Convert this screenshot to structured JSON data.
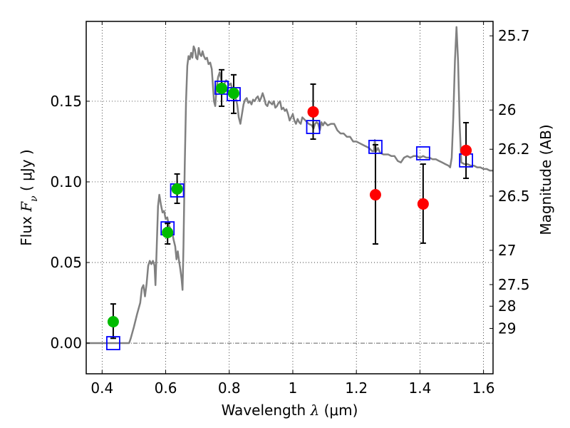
{
  "chart_data": {
    "type": "scatter",
    "title": "",
    "xlabel": "Wavelength  λ (μm)",
    "xlabel_parts": {
      "prefix": "Wavelength  ",
      "symbol": "λ",
      "unit": " (μm)"
    },
    "ylabel": "Flux  Fν  ( μJy )",
    "ylabel_parts": {
      "prefix": "Flux  ",
      "symbol": "F",
      "subscript": "ν",
      "unit": "  ( μJy )"
    },
    "y2label": "Magnitude (AB)",
    "xlim": [
      0.35,
      1.63
    ],
    "ylim": [
      -0.019,
      0.1995
    ],
    "grid": true,
    "x_ticks": [
      {
        "value": 0.4,
        "label": "0.4"
      },
      {
        "value": 0.6,
        "label": "0.6"
      },
      {
        "value": 0.8,
        "label": "0.8"
      },
      {
        "value": 1.0,
        "label": "1"
      },
      {
        "value": 1.2,
        "label": "1.2"
      },
      {
        "value": 1.4,
        "label": "1.4"
      },
      {
        "value": 1.6,
        "label": "1.6"
      }
    ],
    "y_ticks": [
      {
        "value": 0.0,
        "label": "0.00"
      },
      {
        "value": 0.05,
        "label": "0.05"
      },
      {
        "value": 0.1,
        "label": "0.10"
      },
      {
        "value": 0.15,
        "label": "0.15"
      }
    ],
    "y2_ticks": [
      {
        "mag": 25.7,
        "label": "25.7"
      },
      {
        "mag": 26.0,
        "label": "26"
      },
      {
        "mag": 26.2,
        "label": "26.2"
      },
      {
        "mag": 26.5,
        "label": "26.5"
      },
      {
        "mag": 27.0,
        "label": "27"
      },
      {
        "mag": 27.5,
        "label": "27.5"
      },
      {
        "mag": 28.0,
        "label": "28"
      },
      {
        "mag": 29.0,
        "label": "29"
      }
    ],
    "magnitude_zero_point_ujy": 23.9,
    "zero_line": true,
    "series": [
      {
        "name": "model spectrum",
        "kind": "line",
        "color": "#808080",
        "points": [
          [
            0.35,
            0.0
          ],
          [
            0.485,
            0.0
          ],
          [
            0.49,
            0.003
          ],
          [
            0.5,
            0.01
          ],
          [
            0.51,
            0.018
          ],
          [
            0.52,
            0.025
          ],
          [
            0.525,
            0.034
          ],
          [
            0.53,
            0.036
          ],
          [
            0.535,
            0.029
          ],
          [
            0.54,
            0.037
          ],
          [
            0.545,
            0.048
          ],
          [
            0.55,
            0.051
          ],
          [
            0.555,
            0.049
          ],
          [
            0.56,
            0.051
          ],
          [
            0.565,
            0.048
          ],
          [
            0.568,
            0.036
          ],
          [
            0.572,
            0.06
          ],
          [
            0.576,
            0.085
          ],
          [
            0.58,
            0.092
          ],
          [
            0.585,
            0.086
          ],
          [
            0.59,
            0.081
          ],
          [
            0.595,
            0.082
          ],
          [
            0.6,
            0.077
          ],
          [
            0.605,
            0.078
          ],
          [
            0.61,
            0.073
          ],
          [
            0.615,
            0.071
          ],
          [
            0.62,
            0.069
          ],
          [
            0.625,
            0.064
          ],
          [
            0.63,
            0.06
          ],
          [
            0.634,
            0.052
          ],
          [
            0.638,
            0.057
          ],
          [
            0.642,
            0.051
          ],
          [
            0.646,
            0.046
          ],
          [
            0.65,
            0.04
          ],
          [
            0.653,
            0.033
          ],
          [
            0.656,
            0.06
          ],
          [
            0.66,
            0.11
          ],
          [
            0.664,
            0.15
          ],
          [
            0.668,
            0.172
          ],
          [
            0.672,
            0.178
          ],
          [
            0.676,
            0.176
          ],
          [
            0.68,
            0.18
          ],
          [
            0.684,
            0.177
          ],
          [
            0.688,
            0.184
          ],
          [
            0.692,
            0.182
          ],
          [
            0.696,
            0.177
          ],
          [
            0.7,
            0.176
          ],
          [
            0.704,
            0.183
          ],
          [
            0.708,
            0.179
          ],
          [
            0.712,
            0.178
          ],
          [
            0.716,
            0.181
          ],
          [
            0.72,
            0.178
          ],
          [
            0.725,
            0.176
          ],
          [
            0.73,
            0.177
          ],
          [
            0.735,
            0.173
          ],
          [
            0.74,
            0.174
          ],
          [
            0.745,
            0.17
          ],
          [
            0.748,
            0.162
          ],
          [
            0.752,
            0.15
          ],
          [
            0.756,
            0.147
          ],
          [
            0.76,
            0.158
          ],
          [
            0.765,
            0.165
          ],
          [
            0.77,
            0.168
          ],
          [
            0.775,
            0.163
          ],
          [
            0.78,
            0.158
          ],
          [
            0.785,
            0.161
          ],
          [
            0.79,
            0.163
          ],
          [
            0.795,
            0.162
          ],
          [
            0.8,
            0.16
          ],
          [
            0.805,
            0.161
          ],
          [
            0.81,
            0.157
          ],
          [
            0.815,
            0.153
          ],
          [
            0.82,
            0.152
          ],
          [
            0.825,
            0.148
          ],
          [
            0.83,
            0.14
          ],
          [
            0.835,
            0.136
          ],
          [
            0.84,
            0.142
          ],
          [
            0.845,
            0.148
          ],
          [
            0.85,
            0.151
          ],
          [
            0.855,
            0.152
          ],
          [
            0.86,
            0.149
          ],
          [
            0.865,
            0.15
          ],
          [
            0.87,
            0.148
          ],
          [
            0.875,
            0.151
          ],
          [
            0.88,
            0.15
          ],
          [
            0.885,
            0.152
          ],
          [
            0.89,
            0.153
          ],
          [
            0.895,
            0.15
          ],
          [
            0.9,
            0.152
          ],
          [
            0.905,
            0.155
          ],
          [
            0.91,
            0.152
          ],
          [
            0.915,
            0.148
          ],
          [
            0.92,
            0.147
          ],
          [
            0.925,
            0.15
          ],
          [
            0.93,
            0.149
          ],
          [
            0.935,
            0.148
          ],
          [
            0.94,
            0.15
          ],
          [
            0.945,
            0.146
          ],
          [
            0.95,
            0.147
          ],
          [
            0.955,
            0.149
          ],
          [
            0.96,
            0.15
          ],
          [
            0.965,
            0.145
          ],
          [
            0.97,
            0.146
          ],
          [
            0.975,
            0.144
          ],
          [
            0.98,
            0.145
          ],
          [
            0.985,
            0.142
          ],
          [
            0.99,
            0.138
          ],
          [
            0.995,
            0.14
          ],
          [
            1.0,
            0.142
          ],
          [
            1.005,
            0.138
          ],
          [
            1.01,
            0.136
          ],
          [
            1.015,
            0.139
          ],
          [
            1.02,
            0.137
          ],
          [
            1.025,
            0.136
          ],
          [
            1.03,
            0.14
          ],
          [
            1.04,
            0.138
          ],
          [
            1.05,
            0.136
          ],
          [
            1.06,
            0.135
          ],
          [
            1.065,
            0.133
          ],
          [
            1.07,
            0.136
          ],
          [
            1.075,
            0.137
          ],
          [
            1.08,
            0.136
          ],
          [
            1.085,
            0.132
          ],
          [
            1.09,
            0.137
          ],
          [
            1.095,
            0.135
          ],
          [
            1.1,
            0.137
          ],
          [
            1.11,
            0.135
          ],
          [
            1.12,
            0.136
          ],
          [
            1.13,
            0.136
          ],
          [
            1.14,
            0.132
          ],
          [
            1.15,
            0.13
          ],
          [
            1.16,
            0.13
          ],
          [
            1.17,
            0.128
          ],
          [
            1.18,
            0.128
          ],
          [
            1.19,
            0.125
          ],
          [
            1.2,
            0.125
          ],
          [
            1.21,
            0.124
          ],
          [
            1.22,
            0.123
          ],
          [
            1.23,
            0.122
          ],
          [
            1.24,
            0.121
          ],
          [
            1.25,
            0.119
          ],
          [
            1.255,
            0.119
          ],
          [
            1.258,
            0.126
          ],
          [
            1.262,
            0.119
          ],
          [
            1.268,
            0.121
          ],
          [
            1.275,
            0.118
          ],
          [
            1.285,
            0.117
          ],
          [
            1.3,
            0.117
          ],
          [
            1.31,
            0.116
          ],
          [
            1.32,
            0.116
          ],
          [
            1.33,
            0.113
          ],
          [
            1.34,
            0.112
          ],
          [
            1.35,
            0.115
          ],
          [
            1.36,
            0.116
          ],
          [
            1.37,
            0.115
          ],
          [
            1.38,
            0.116
          ],
          [
            1.39,
            0.116
          ],
          [
            1.4,
            0.115
          ],
          [
            1.41,
            0.116
          ],
          [
            1.42,
            0.115
          ],
          [
            1.43,
            0.115
          ],
          [
            1.44,
            0.114
          ],
          [
            1.45,
            0.114
          ],
          [
            1.46,
            0.113
          ],
          [
            1.47,
            0.112
          ],
          [
            1.48,
            0.111
          ],
          [
            1.49,
            0.11
          ],
          [
            1.495,
            0.109
          ],
          [
            1.5,
            0.115
          ],
          [
            1.505,
            0.14
          ],
          [
            1.51,
            0.175
          ],
          [
            1.515,
            0.196
          ],
          [
            1.52,
            0.175
          ],
          [
            1.525,
            0.135
          ],
          [
            1.53,
            0.112
          ],
          [
            1.54,
            0.111
          ],
          [
            1.55,
            0.111
          ],
          [
            1.56,
            0.11
          ],
          [
            1.57,
            0.11
          ],
          [
            1.58,
            0.109
          ],
          [
            1.59,
            0.109
          ],
          [
            1.6,
            0.108
          ],
          [
            1.61,
            0.108
          ],
          [
            1.62,
            0.107
          ],
          [
            1.63,
            0.107
          ]
        ]
      },
      {
        "name": "model photometry",
        "kind": "square-markers",
        "color": "#0000ff",
        "x": [
          0.435,
          0.606,
          0.636,
          0.776,
          0.814,
          1.064,
          1.26,
          1.41,
          1.545
        ],
        "y": [
          0.0,
          0.0712,
          0.0947,
          0.1584,
          0.1544,
          0.134,
          0.1217,
          0.1177,
          0.1133
        ]
      },
      {
        "name": "optical photometry (detections)",
        "kind": "circle-markers",
        "color": "#00bb00",
        "x": [
          0.435,
          0.606,
          0.636,
          0.776,
          0.814
        ],
        "y": [
          0.0133,
          0.0686,
          0.0956,
          0.158,
          0.1549
        ],
        "err_low": [
          0.003,
          0.0615,
          0.0867,
          0.1469,
          0.1425
        ],
        "err_high": [
          0.0243,
          0.0743,
          0.1049,
          0.1695,
          0.1664
        ]
      },
      {
        "name": "near-IR photometry",
        "kind": "circle-markers",
        "color": "#ff0000",
        "x": [
          1.064,
          1.26,
          1.41,
          1.545
        ],
        "y": [
          0.1434,
          0.092,
          0.0863,
          0.1195
        ],
        "err_low": [
          0.1265,
          0.0615,
          0.062,
          0.1022
        ],
        "err_high": [
          0.1606,
          0.123,
          0.111,
          0.1367
        ]
      }
    ]
  }
}
